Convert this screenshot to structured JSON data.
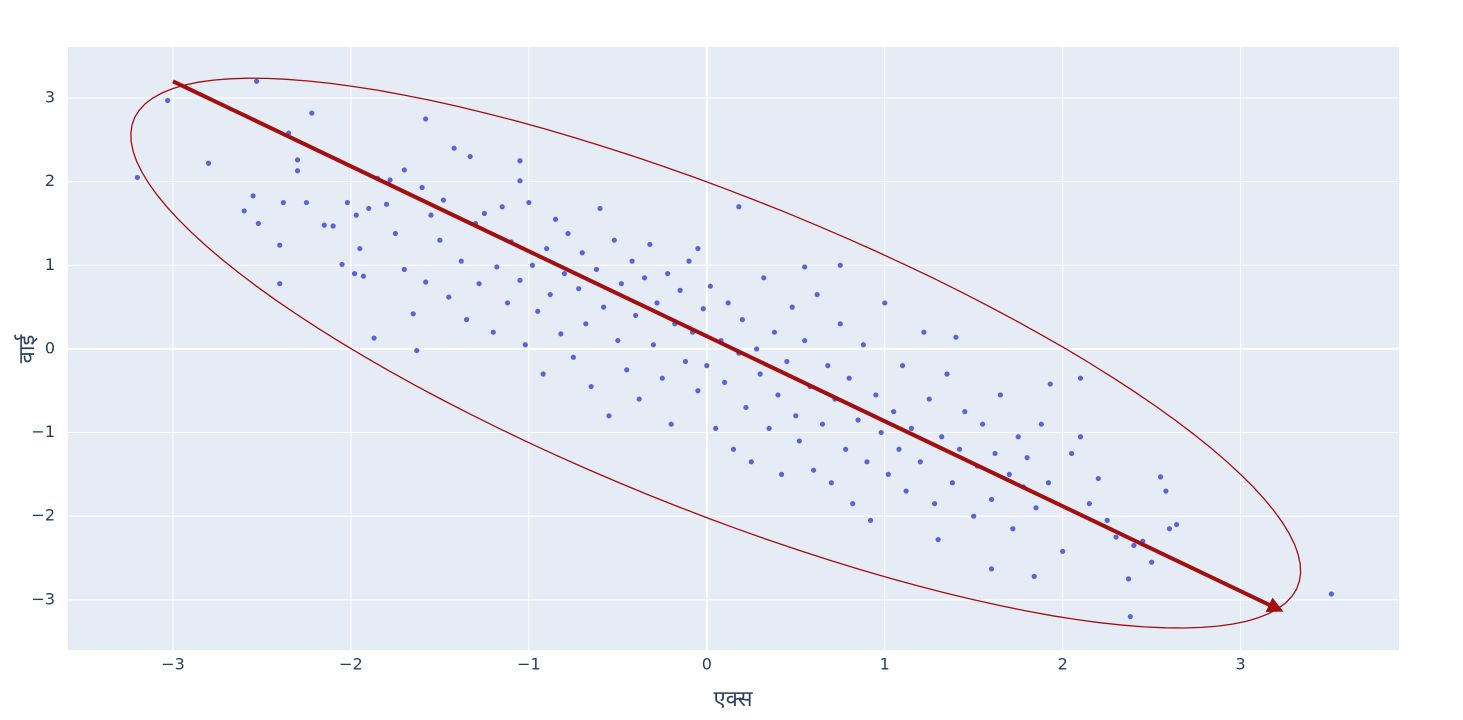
{
  "chart_data": {
    "type": "scatter",
    "x_label": "एक्स",
    "y_label": "वाई",
    "color": "#5a64d8",
    "x": [
      -3.2,
      -3.03,
      -2.8,
      -2.53,
      -2.22,
      -1.58,
      3.51,
      2.38,
      2.37,
      0.18,
      -1.05,
      -1.33,
      -1.05,
      1.6,
      1.84,
      1.3,
      -1.87,
      -1.63,
      -2.4,
      2.64,
      2.58,
      2.55,
      2.1,
      1.93,
      1.4,
      -0.05,
      0.75,
      0.55,
      -2.6,
      -2.55,
      -2.52,
      -2.4,
      -2.38,
      -2.35,
      -2.3,
      -2.3,
      -2.25,
      -2.15,
      -2.1,
      -2.05,
      -2.02,
      -1.98,
      -1.97,
      -1.93,
      -1.95,
      -1.9,
      -1.85,
      -1.8,
      -1.78,
      -1.75,
      -1.7,
      -1.7,
      -1.65,
      -1.6,
      -1.58,
      -1.55,
      -1.5,
      -1.48,
      -1.45,
      -1.42,
      -1.38,
      -1.35,
      -1.3,
      -1.28,
      -1.25,
      -1.2,
      -1.18,
      -1.15,
      -1.12,
      -1.1,
      -1.05,
      -1.02,
      -1.0,
      -0.98,
      -0.95,
      -0.92,
      -0.9,
      -0.88,
      -0.85,
      -0.82,
      -0.8,
      -0.78,
      -0.75,
      -0.72,
      -0.7,
      -0.68,
      -0.65,
      -0.62,
      -0.6,
      -0.58,
      -0.55,
      -0.52,
      -0.5,
      -0.48,
      -0.45,
      -0.42,
      -0.4,
      -0.38,
      -0.35,
      -0.32,
      -0.3,
      -0.28,
      -0.25,
      -0.22,
      -0.2,
      -0.18,
      -0.15,
      -0.12,
      -0.1,
      -0.08,
      -0.05,
      -0.02,
      0.0,
      0.02,
      0.05,
      0.08,
      0.1,
      0.12,
      0.15,
      0.18,
      0.2,
      0.22,
      0.25,
      0.28,
      0.3,
      0.32,
      0.35,
      0.38,
      0.4,
      0.42,
      0.45,
      0.48,
      0.5,
      0.52,
      0.55,
      0.58,
      0.6,
      0.62,
      0.65,
      0.68,
      0.7,
      0.72,
      0.75,
      0.78,
      0.8,
      0.82,
      0.85,
      0.88,
      0.9,
      0.92,
      0.95,
      0.98,
      1.0,
      1.02,
      1.05,
      1.08,
      1.1,
      1.12,
      1.15,
      1.2,
      1.22,
      1.25,
      1.28,
      1.32,
      1.35,
      1.38,
      1.42,
      1.45,
      1.5,
      1.52,
      1.55,
      1.6,
      1.62,
      1.65,
      1.7,
      1.72,
      1.75,
      1.78,
      1.8,
      1.85,
      1.88,
      1.92,
      2.0,
      2.05,
      2.1,
      2.15,
      2.2,
      2.25,
      2.3,
      2.4,
      2.45,
      2.5,
      2.6
    ],
    "y": [
      2.05,
      2.97,
      2.22,
      3.2,
      2.82,
      2.75,
      -2.93,
      -3.2,
      -2.75,
      1.7,
      2.01,
      2.3,
      2.25,
      -2.63,
      -2.72,
      -2.28,
      0.13,
      -0.02,
      0.78,
      -2.1,
      -1.7,
      -1.53,
      -0.35,
      -0.42,
      0.14,
      1.2,
      1.0,
      0.98,
      1.65,
      1.83,
      1.5,
      1.24,
      1.75,
      2.58,
      2.26,
      2.13,
      1.75,
      1.48,
      1.47,
      1.01,
      1.75,
      0.9,
      1.6,
      0.87,
      1.2,
      1.68,
      2.04,
      1.73,
      2.02,
      1.38,
      2.14,
      0.95,
      0.42,
      1.93,
      0.8,
      1.6,
      1.3,
      1.78,
      0.62,
      2.4,
      1.05,
      0.35,
      1.5,
      0.78,
      1.62,
      0.2,
      0.98,
      1.7,
      0.55,
      1.28,
      0.82,
      0.05,
      1.75,
      1.0,
      0.45,
      -0.3,
      1.2,
      0.65,
      1.55,
      0.18,
      0.9,
      1.38,
      -0.1,
      0.72,
      1.15,
      0.3,
      -0.45,
      0.95,
      1.68,
      0.5,
      -0.8,
      1.3,
      0.1,
      0.78,
      -0.25,
      1.05,
      0.4,
      -0.6,
      0.85,
      1.25,
      0.05,
      0.55,
      -0.35,
      0.9,
      -0.9,
      0.3,
      0.7,
      -0.15,
      1.05,
      0.2,
      -0.5,
      0.48,
      -0.2,
      0.75,
      -0.95,
      0.1,
      -0.4,
      0.55,
      -1.2,
      -0.05,
      0.35,
      -0.7,
      -1.35,
      0.0,
      -0.3,
      0.85,
      -0.95,
      0.2,
      -0.55,
      -1.5,
      -0.15,
      0.5,
      -0.8,
      -1.1,
      0.1,
      -0.45,
      -1.45,
      0.65,
      -0.9,
      -0.2,
      -1.6,
      -0.6,
      0.3,
      -1.2,
      -0.35,
      -1.85,
      -0.85,
      0.05,
      -1.35,
      -2.05,
      -0.55,
      -1.0,
      0.55,
      -1.5,
      -0.75,
      -1.2,
      -0.2,
      -1.7,
      -0.95,
      -1.35,
      0.2,
      -0.6,
      -1.85,
      -1.05,
      -0.3,
      -1.6,
      -1.2,
      -0.75,
      -2.0,
      -1.4,
      -0.9,
      -1.8,
      -1.25,
      -0.55,
      -1.5,
      -2.15,
      -1.05,
      -1.65,
      -1.3,
      -1.9,
      -0.9,
      -1.6,
      -2.42,
      -1.25,
      -1.05,
      -1.85,
      -1.55,
      -2.05,
      -2.25,
      -2.35,
      -2.3,
      -2.55,
      -2.15
    ],
    "xlim": [
      -3.59,
      3.89
    ],
    "ylim": [
      -3.6,
      3.61
    ],
    "xticks": [
      {
        "value": -3,
        "label": "−3"
      },
      {
        "value": -2,
        "label": "−2"
      },
      {
        "value": -1,
        "label": "−1"
      },
      0,
      1,
      2,
      3
    ],
    "yticks": [
      {
        "value": -3,
        "label": "−3"
      },
      {
        "value": -2,
        "label": "−2"
      },
      {
        "value": -1,
        "label": "−1"
      },
      0,
      1,
      2,
      3
    ],
    "grid": true,
    "arrow": {
      "x0": -3,
      "y0": 3.2,
      "x1": 3.2,
      "y1": -3.1,
      "color": "#a30e0e"
    },
    "ellipse": {
      "cx": 0.05,
      "cy": -0.05,
      "a": 4.4,
      "b": 1.5,
      "angle_deg": -45,
      "color": "#a30e0e"
    }
  }
}
